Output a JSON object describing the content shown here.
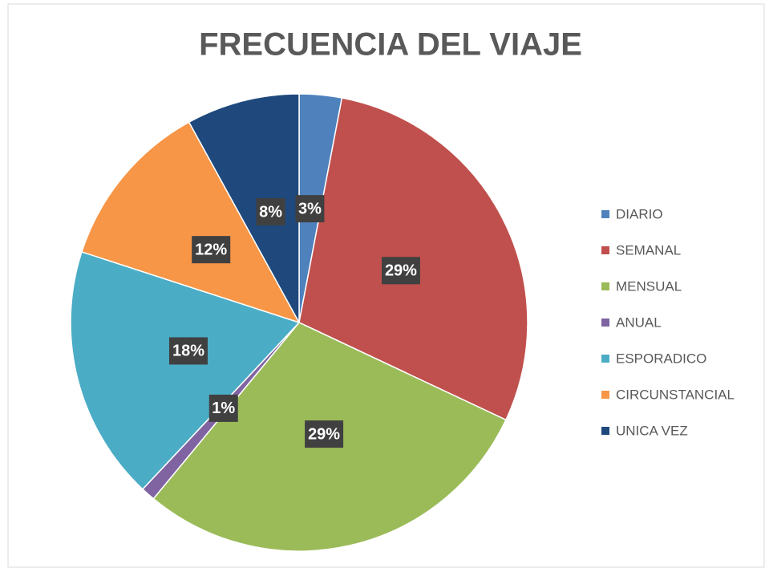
{
  "chart_data": {
    "type": "pie",
    "title": "FRECUENCIA DEL VIAJE",
    "categories": [
      "DIARIO",
      "SEMANAL",
      "MENSUAL",
      "ANUAL",
      "ESPORADICO",
      "CIRCUNSTANCIAL",
      "UNICA VEZ"
    ],
    "values": [
      3,
      29,
      29,
      1,
      18,
      12,
      8
    ],
    "value_labels": [
      "3%",
      "29%",
      "29%",
      "1%",
      "18%",
      "12%",
      "8%"
    ],
    "colors": [
      "#4f81bd",
      "#c0504d",
      "#9bbb59",
      "#8064a2",
      "#4bacc6",
      "#f79646",
      "#1f497d"
    ],
    "legend": "right"
  }
}
